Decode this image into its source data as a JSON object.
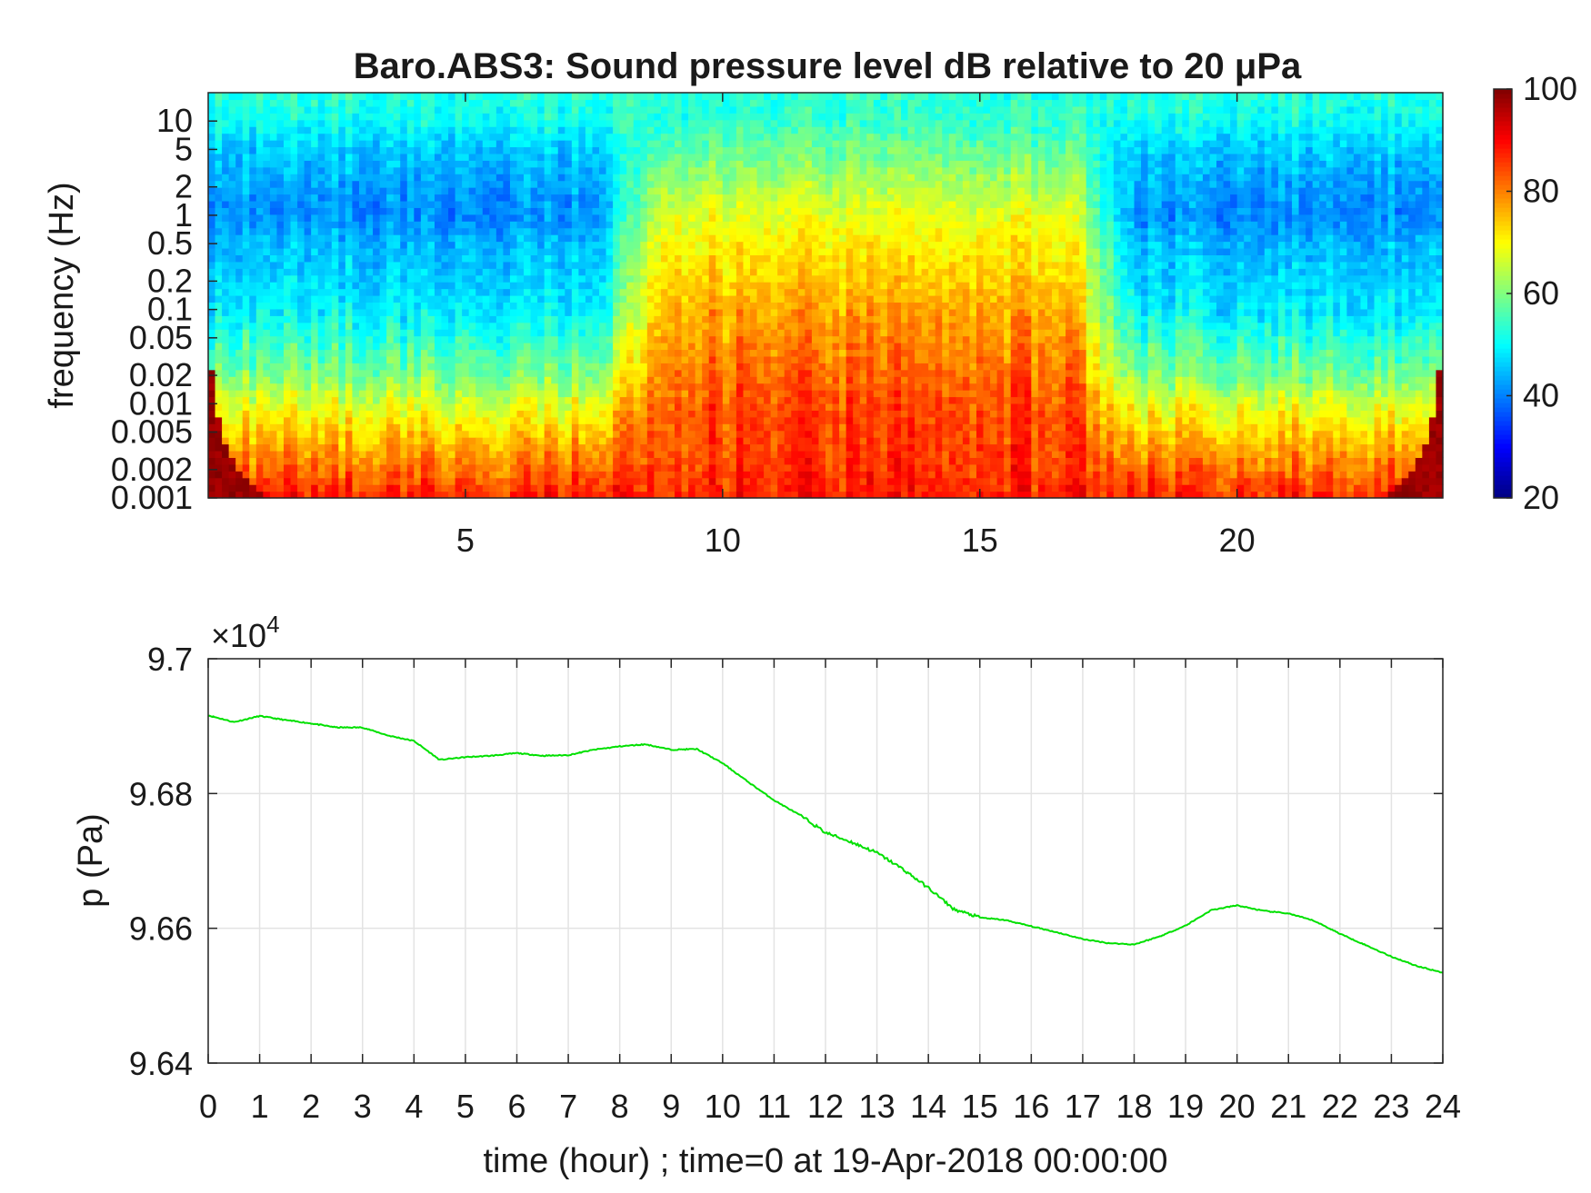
{
  "chart_data": [
    {
      "type": "heatmap",
      "title": "Baro.ABS3: Sound pressure level dB relative to 20 μPa",
      "xlabel": "",
      "ylabel": "frequency (Hz)",
      "x_ticks": [
        5,
        10,
        15,
        20
      ],
      "x_range": [
        0,
        24
      ],
      "y_scale": "log",
      "y_range": [
        0.001,
        20
      ],
      "y_ticks": [
        "0.001",
        "0.002",
        "0.005",
        "0.01",
        "0.02",
        "0.05",
        "0.1",
        "0.2",
        "0.5",
        "1",
        "2",
        "5",
        "10"
      ],
      "colorbar": {
        "colormap": "jet",
        "range": [
          20,
          100
        ],
        "ticks": [
          20,
          40,
          60,
          80,
          100
        ]
      },
      "level_profile_db": [
        {
          "log10_f": -3.0,
          "quiet": 88,
          "active": 88
        },
        {
          "log10_f": -2.7,
          "quiet": 82,
          "active": 86
        },
        {
          "log10_f": -2.3,
          "quiet": 74,
          "active": 85
        },
        {
          "log10_f": -2.0,
          "quiet": 68,
          "active": 84
        },
        {
          "log10_f": -1.7,
          "quiet": 60,
          "active": 82
        },
        {
          "log10_f": -1.3,
          "quiet": 54,
          "active": 79
        },
        {
          "log10_f": -1.0,
          "quiet": 49,
          "active": 77
        },
        {
          "log10_f": -0.7,
          "quiet": 47,
          "active": 74
        },
        {
          "log10_f": -0.3,
          "quiet": 45,
          "active": 71
        },
        {
          "log10_f": 0.0,
          "quiet": 41,
          "active": 68
        },
        {
          "log10_f": 0.3,
          "quiet": 43,
          "active": 64
        },
        {
          "log10_f": 0.7,
          "quiet": 46,
          "active": 58
        },
        {
          "log10_f": 1.0,
          "quiet": 51,
          "active": 54
        },
        {
          "log10_f": 1.3,
          "quiet": 53,
          "active": 53
        }
      ],
      "active_period_hours": [
        8.2,
        17.4
      ],
      "colors": {
        "low": "#00008f",
        "high": "#800000"
      }
    },
    {
      "type": "line",
      "title": "",
      "xlabel": "time (hour) ; time=0 at 19-Apr-2018 00:00:00",
      "ylabel": "p (Pa)",
      "y_exponent_label": "×10",
      "y_exponent": "4",
      "x_range": [
        0,
        24
      ],
      "y_range": [
        9.64,
        9.7
      ],
      "x_ticks": [
        0,
        1,
        2,
        3,
        4,
        5,
        6,
        7,
        8,
        9,
        10,
        11,
        12,
        13,
        14,
        15,
        16,
        17,
        18,
        19,
        20,
        21,
        22,
        23,
        24
      ],
      "y_ticks": [
        "9.64",
        "9.66",
        "9.68",
        "9.7"
      ],
      "grid": true,
      "series": [
        {
          "color": "#00e000",
          "x": [
            0,
            0.5,
            1,
            1.5,
            2,
            2.5,
            3,
            3.5,
            4,
            4.5,
            5,
            5.5,
            6,
            6.5,
            7,
            7.5,
            8,
            8.5,
            9,
            9.5,
            10,
            10.5,
            11,
            11.5,
            12,
            12.5,
            13,
            13.5,
            14,
            14.5,
            15,
            15.5,
            16,
            16.5,
            17,
            17.5,
            18,
            18.5,
            19,
            19.5,
            20,
            20.5,
            21,
            21.5,
            22,
            22.5,
            23,
            23.5,
            24
          ],
          "y": [
            9.6916,
            9.6906,
            9.6915,
            9.6909,
            9.6904,
            9.6898,
            9.6898,
            9.6886,
            9.6878,
            9.685,
            9.6854,
            9.6856,
            9.686,
            9.6856,
            9.6857,
            9.6865,
            9.687,
            9.6873,
            9.6865,
            9.6866,
            9.6845,
            9.6817,
            9.679,
            9.6768,
            9.6742,
            9.6728,
            9.6712,
            9.6688,
            9.666,
            9.6628,
            9.6616,
            9.6612,
            9.6603,
            9.6594,
            9.6584,
            9.6578,
            9.6576,
            9.6588,
            9.6604,
            9.6627,
            9.6634,
            9.6626,
            9.6622,
            9.6611,
            9.6592,
            9.6575,
            9.6558,
            9.6544,
            9.6534
          ]
        }
      ]
    }
  ]
}
